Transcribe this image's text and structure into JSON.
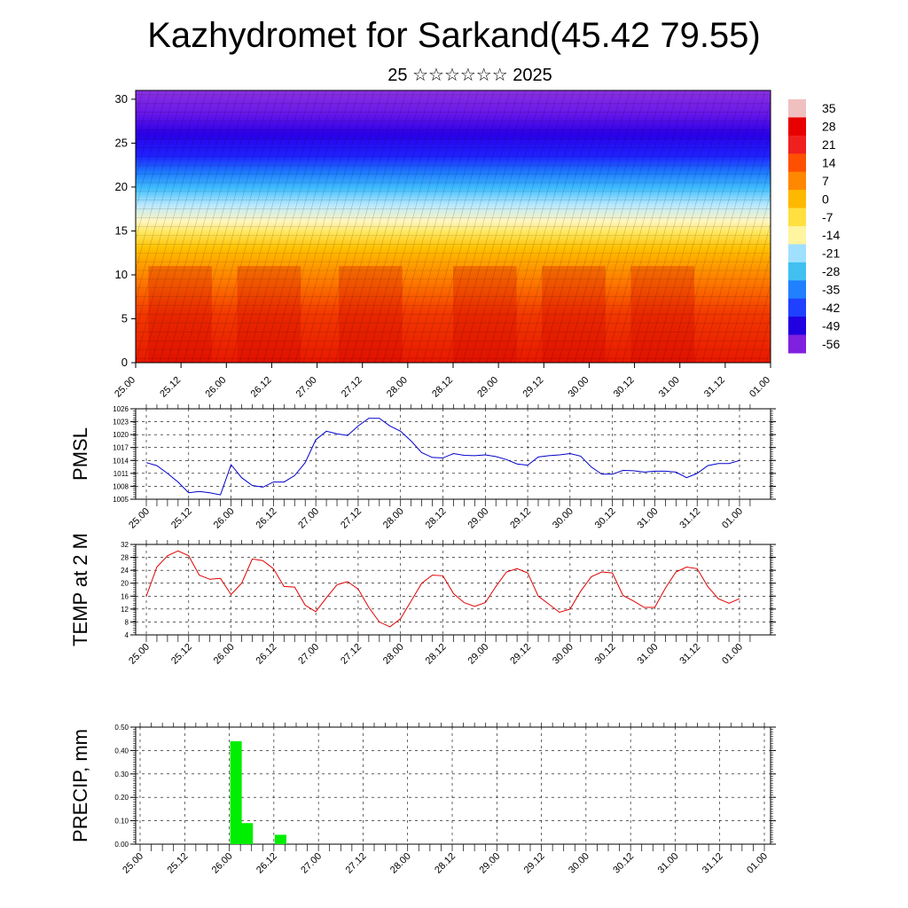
{
  "header": {
    "title": "Kazhydromet for Sarkand(45.42 79.55)",
    "subtitle": "25 ☆☆☆☆☆☆ 2025"
  },
  "time_labels": [
    "25.00",
    "25.12",
    "26.00",
    "26.12",
    "27.00",
    "27.12",
    "28.00",
    "28.12",
    "29.00",
    "29.12",
    "30.00",
    "30.12",
    "31.00",
    "31.12",
    "01.00"
  ],
  "chart_data": [
    {
      "id": "wind-temp-section",
      "type": "heatmap",
      "title": "",
      "ylabel": "",
      "y_ticks": [
        0,
        5,
        10,
        15,
        20,
        25,
        30
      ],
      "ylim": [
        0,
        31
      ],
      "x_categories": [
        "25.00",
        "25.12",
        "26.00",
        "26.12",
        "27.00",
        "27.12",
        "28.00",
        "28.12",
        "29.00",
        "29.12",
        "30.00",
        "30.12",
        "31.00",
        "31.12",
        "01.00"
      ],
      "colorbar_labels": [
        "35",
        "28",
        "21",
        "14",
        "7",
        "0",
        "-7",
        "-14",
        "-21",
        "-28",
        "-35",
        "-42",
        "-49",
        "-56"
      ],
      "colorbar_colors": [
        "#f0c0c0",
        "#e80000",
        "#f02020",
        "#ff5000",
        "#ff8800",
        "#ffb800",
        "#ffe040",
        "#fff4a0",
        "#a0e0ff",
        "#40c0f0",
        "#2080ff",
        "#2040ff",
        "#2000e0",
        "#8020e0"
      ]
    },
    {
      "id": "pmsl",
      "type": "line",
      "ylabel": "PMSL",
      "ylim": [
        1005,
        1026
      ],
      "y_ticks": [
        1005,
        1008,
        1011,
        1014,
        1017,
        1020,
        1023,
        1026
      ],
      "x": [
        0,
        3,
        6,
        9,
        12,
        15,
        18,
        21,
        24,
        27,
        30,
        33,
        36,
        39,
        42,
        45,
        48,
        51,
        54,
        57,
        60,
        63,
        66,
        69,
        72,
        75,
        78,
        81,
        84,
        87,
        90,
        93,
        96,
        99,
        102,
        105,
        108,
        111,
        114,
        117,
        120,
        123,
        126,
        129,
        132,
        135,
        138,
        141,
        144,
        147,
        150,
        153,
        156,
        159,
        162,
        165,
        168
      ],
      "values": [
        1013.5,
        1012.8,
        1011,
        1009,
        1006.5,
        1006.8,
        1006.5,
        1006,
        1013,
        1010,
        1008.2,
        1007.8,
        1009,
        1009,
        1010.5,
        1013.5,
        1018.8,
        1020.8,
        1020.2,
        1019.8,
        1022,
        1023.8,
        1023.8,
        1022,
        1020.8,
        1018.5,
        1015.8,
        1014.7,
        1014.6,
        1015.6,
        1015.2,
        1015.1,
        1015.3,
        1014.9,
        1014.2,
        1013.2,
        1012.9,
        1014.8,
        1015.1,
        1015.3,
        1015.6,
        1015.0,
        1012.5,
        1010.8,
        1010.8,
        1011.7,
        1011.6,
        1011.3,
        1011.5,
        1011.5,
        1011.3,
        1010.0,
        1011.0,
        1012.8,
        1013.3,
        1013.3,
        1014.0
      ],
      "color": "#0000cc"
    },
    {
      "id": "temp2m",
      "type": "line",
      "ylabel": "TEMP at 2 M",
      "ylim": [
        4,
        32
      ],
      "y_ticks": [
        4,
        8,
        12,
        16,
        20,
        24,
        28,
        32
      ],
      "x": [
        0,
        3,
        6,
        9,
        12,
        15,
        18,
        21,
        24,
        27,
        30,
        33,
        36,
        39,
        42,
        45,
        48,
        51,
        54,
        57,
        60,
        63,
        66,
        69,
        72,
        75,
        78,
        81,
        84,
        87,
        90,
        93,
        96,
        99,
        102,
        105,
        108,
        111,
        114,
        117,
        120,
        123,
        126,
        129,
        132,
        135,
        138,
        141,
        144,
        147,
        150,
        153,
        156,
        159,
        162,
        165,
        168
      ],
      "values": [
        16,
        25,
        28.5,
        30,
        28.5,
        22.5,
        21.2,
        21.5,
        16.5,
        20,
        27.5,
        27,
        24.5,
        19,
        18.8,
        13.2,
        11.2,
        15.5,
        19.5,
        20.5,
        18.2,
        12.5,
        8,
        6.5,
        9,
        14.5,
        20,
        22.5,
        22.3,
        16.8,
        14,
        12.8,
        14,
        19,
        23.5,
        24.5,
        23.2,
        16,
        13.5,
        11,
        12,
        17.5,
        22,
        23.5,
        23.2,
        16.2,
        14.5,
        12.5,
        12.5,
        18.5,
        23.5,
        25,
        24.5,
        19,
        15.2,
        13.8,
        15.2
      ],
      "color": "#e00000"
    },
    {
      "id": "precip",
      "type": "bar",
      "ylabel": "PRECIP, mm",
      "ylim": [
        0,
        0.5
      ],
      "y_ticks": [
        "0.00",
        "0.10",
        "0.20",
        "0.30",
        "0.40",
        "0.50"
      ],
      "bars": [
        {
          "x": 24,
          "value": 0.44
        },
        {
          "x": 27,
          "value": 0.09
        },
        {
          "x": 36,
          "value": 0.04
        }
      ],
      "color": "#00ee00"
    }
  ]
}
